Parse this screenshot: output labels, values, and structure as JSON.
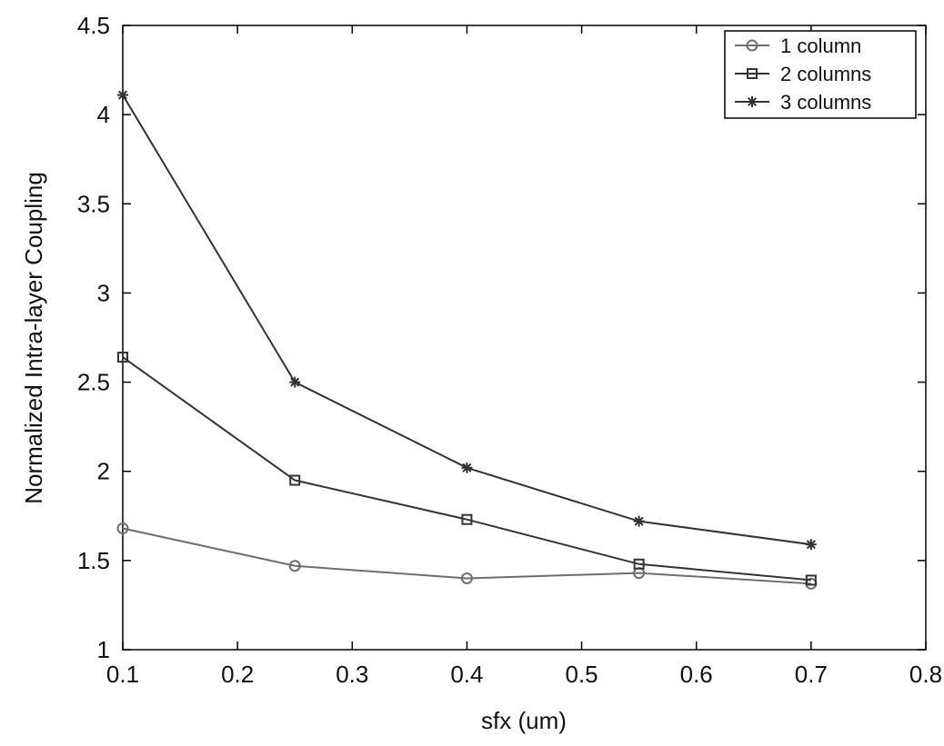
{
  "chart_data": {
    "type": "line",
    "xlabel": "sfx (um)",
    "ylabel": "Normalized Intra-layer Coupling",
    "xlim": [
      0.1,
      0.8
    ],
    "ylim": [
      1,
      4.5
    ],
    "x_ticks": [
      "0.1",
      "0.2",
      "0.3",
      "0.4",
      "0.5",
      "0.6",
      "0.7",
      "0.8"
    ],
    "y_ticks": [
      "1",
      "1.5",
      "2",
      "2.5",
      "3",
      "3.5",
      "4",
      "4.5"
    ],
    "legend_position": "top-right",
    "grid": false,
    "x": [
      0.1,
      0.25,
      0.4,
      0.55,
      0.7
    ],
    "series": [
      {
        "name": "1 column",
        "marker": "circle",
        "color": "#6e6e6e",
        "values": [
          1.68,
          1.47,
          1.4,
          1.43,
          1.37
        ]
      },
      {
        "name": "2 columns",
        "marker": "square",
        "color": "#333333",
        "values": [
          2.64,
          1.95,
          1.73,
          1.48,
          1.39
        ]
      },
      {
        "name": "3 columns",
        "marker": "star",
        "color": "#333333",
        "values": [
          4.11,
          2.5,
          2.02,
          1.72,
          1.59
        ]
      }
    ]
  }
}
